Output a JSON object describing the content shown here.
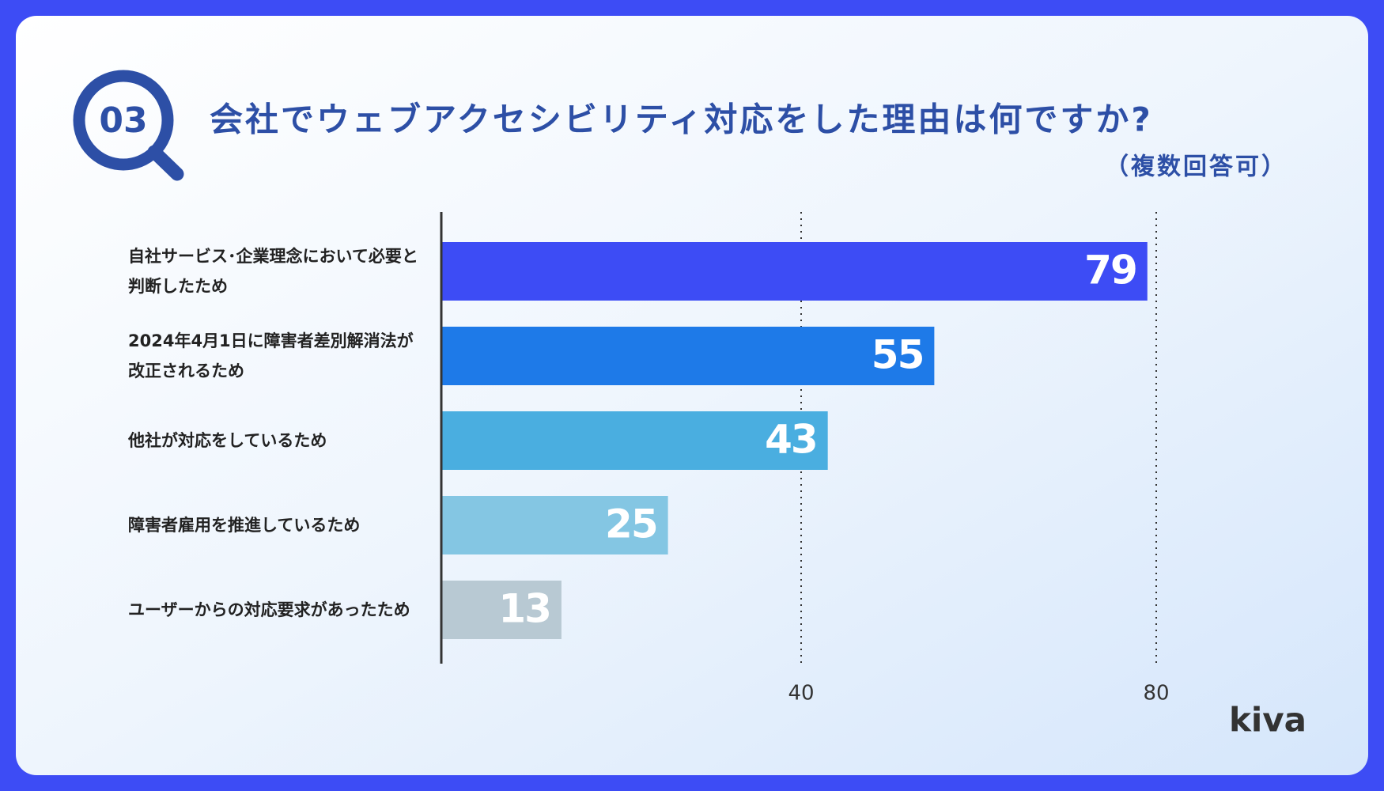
{
  "chart_data": {
    "type": "bar",
    "orientation": "horizontal",
    "badge": "03",
    "title": "会社でウェブアクセシビリティ対応をした理由は何ですか?",
    "subtitle": "（複数回答可）",
    "brand": "kiva",
    "categories": [
      "自社サービス･企業理念において必要と判断したため",
      "2024年4月1日に障害者差別解消法が改正されるため",
      "他社が対応をしているため",
      "障害者雇用を推進しているため",
      "ユーザーからの対応要求があったため"
    ],
    "values": [
      79,
      55,
      43,
      25,
      13
    ],
    "colors": [
      "#3d4cf5",
      "#1e7ae8",
      "#4aaee0",
      "#84c6e3",
      "#b8c9d3"
    ],
    "xlim": [
      0,
      80
    ],
    "xticks": [
      40,
      80
    ],
    "grid": true
  }
}
